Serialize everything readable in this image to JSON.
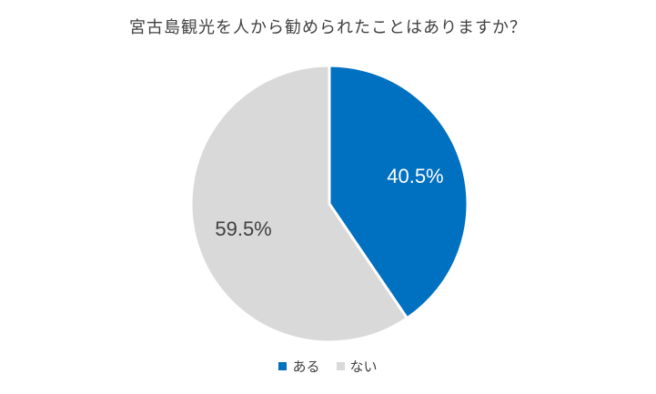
{
  "chart_data": {
    "type": "pie",
    "title": "宮古島観光を人から勧められたことはありますか？",
    "slices": [
      {
        "label": "ある",
        "value": 40.5,
        "data_label": "40.5%",
        "color": "#0070C0",
        "label_color": "#ffffff"
      },
      {
        "label": "ない",
        "value": 59.5,
        "data_label": "59.5%",
        "color": "#D9D9D9",
        "label_color": "#404040"
      }
    ],
    "legend_position": "bottom"
  }
}
